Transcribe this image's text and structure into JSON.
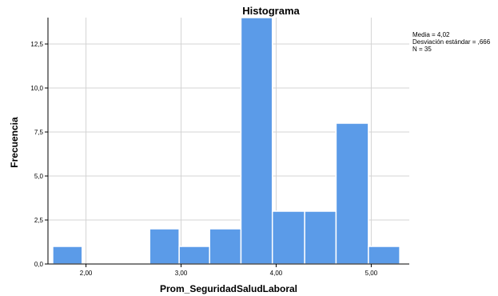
{
  "chart_data": {
    "type": "bar",
    "title": "Histograma",
    "xlabel": "Prom_SeguridadSaludLaboral",
    "ylabel": "Frecuencia",
    "xlim": [
      1.6,
      5.4
    ],
    "ylim": [
      0,
      14
    ],
    "x_ticks": [
      {
        "value": 2.0,
        "label": "2,00"
      },
      {
        "value": 3.0,
        "label": "3,00"
      },
      {
        "value": 4.0,
        "label": "4,00"
      },
      {
        "value": 5.0,
        "label": "5,00"
      }
    ],
    "y_ticks": [
      {
        "value": 0,
        "label": "0,0"
      },
      {
        "value": 2.5,
        "label": "2,5"
      },
      {
        "value": 5,
        "label": "5,0"
      },
      {
        "value": 7.5,
        "label": "7,5"
      },
      {
        "value": 10,
        "label": "10,0"
      },
      {
        "value": 12.5,
        "label": "12,5"
      }
    ],
    "bins": [
      {
        "start": 1.65,
        "end": 1.96,
        "value": 1
      },
      {
        "start": 2.67,
        "end": 2.98,
        "value": 2
      },
      {
        "start": 2.98,
        "end": 3.3,
        "value": 1
      },
      {
        "start": 3.3,
        "end": 3.63,
        "value": 2
      },
      {
        "start": 3.63,
        "end": 3.96,
        "value": 14
      },
      {
        "start": 3.96,
        "end": 4.3,
        "value": 3
      },
      {
        "start": 4.3,
        "end": 4.63,
        "value": 3
      },
      {
        "start": 4.63,
        "end": 4.97,
        "value": 8
      },
      {
        "start": 4.97,
        "end": 5.3,
        "value": 1
      }
    ],
    "bar_color": "#5b9be8",
    "grid": true,
    "stats": [
      "Media = 4,02",
      "Desviación estándar = ,666",
      "N = 35"
    ]
  }
}
